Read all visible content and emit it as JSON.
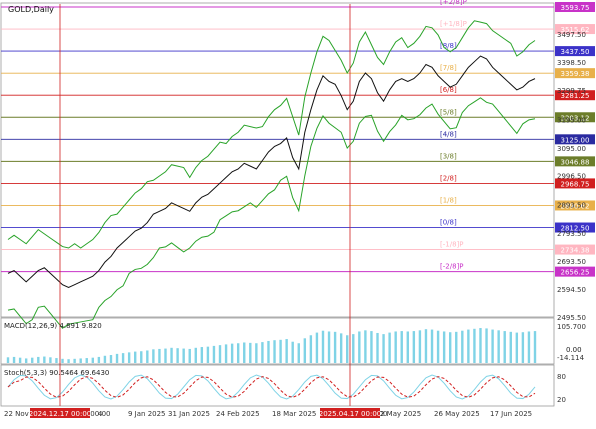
{
  "chart_title": "GOLD,Daily",
  "indicators": {
    "macd": "MACD(12,26,9) 4.891 9.820",
    "stoch": "Stoch(5,3,3) 90.5464 69.6430"
  },
  "markers": {
    "left_date": "2024.12.17 00:00",
    "right_date": "2025.04.17 00:00"
  },
  "chart_data": {
    "type": "line",
    "price_ticks": [
      "3497.50",
      "3398.50",
      "3299.75",
      "3195.00",
      "3095.00",
      "2996.50",
      "2893.50",
      "2793.50",
      "2693.50",
      "2594.50",
      "2495.50"
    ],
    "murrey_levels": [
      {
        "label": "[+2/8]P",
        "value": "3593.75",
        "color": "#c833c8"
      },
      {
        "label": "[+1/8]P",
        "value": "3515.62",
        "color": "#ffb6c1"
      },
      {
        "label": "[8/8]",
        "value": "3437.50",
        "color": "#3b32c8"
      },
      {
        "label": "[7/8]",
        "value": "3359.38",
        "color": "#e8b04a"
      },
      {
        "label": "[6/8]",
        "value": "3281.25",
        "color": "#d11f1f"
      },
      {
        "label": "[5/8]",
        "value": "3203.12",
        "color": "#6c7d2a"
      },
      {
        "label": "[4/8]",
        "value": "3125.00",
        "color": "#2a2aa0"
      },
      {
        "label": "[3/8]",
        "value": "3046.88",
        "color": "#6c7d2a"
      },
      {
        "label": "[2/8]",
        "value": "2968.75",
        "color": "#d11f1f"
      },
      {
        "label": "[1/8]",
        "value": "2890.62",
        "color": "#e8b04a"
      },
      {
        "label": "[0/8]",
        "value": "2812.50",
        "color": "#3b32c8"
      },
      {
        "label": "[-1/8]P",
        "value": "2734.38",
        "color": "#ffb6c1"
      },
      {
        "label": "[-2/8]P",
        "value": "2656.25",
        "color": "#c833c8"
      }
    ],
    "x_labels": [
      "22 Nov",
      "2024.12.17 00:00",
      "4",
      "9 Jan 2025",
      "31 Jan 2025",
      "24 Feb 2025",
      "18 Mar 2025",
      "2025.04.17 00:00",
      "2 May 2025",
      "26 May 2025",
      "17 Jun 2025"
    ],
    "macd_ticks": [
      "105.700",
      "-14.114"
    ],
    "macd_extra": "0.00",
    "stoch_ticks": [
      "80",
      "20"
    ],
    "close": [
      2650,
      2660,
      2640,
      2620,
      2640,
      2660,
      2670,
      2650,
      2630,
      2610,
      2600,
      2610,
      2620,
      2630,
      2640,
      2660,
      2690,
      2710,
      2740,
      2760,
      2780,
      2800,
      2810,
      2830,
      2860,
      2870,
      2880,
      2900,
      2890,
      2880,
      2870,
      2900,
      2920,
      2930,
      2950,
      2970,
      2990,
      3010,
      3020,
      3040,
      3030,
      3020,
      3050,
      3080,
      3100,
      3110,
      3130,
      3060,
      3020,
      3150,
      3230,
      3300,
      3350,
      3330,
      3320,
      3280,
      3230,
      3260,
      3330,
      3360,
      3340,
      3290,
      3260,
      3300,
      3330,
      3340,
      3330,
      3340,
      3360,
      3390,
      3380,
      3350,
      3330,
      3310,
      3320,
      3350,
      3380,
      3400,
      3420,
      3410,
      3380,
      3360,
      3340,
      3320,
      3300,
      3310,
      3330,
      3340
    ]
  }
}
